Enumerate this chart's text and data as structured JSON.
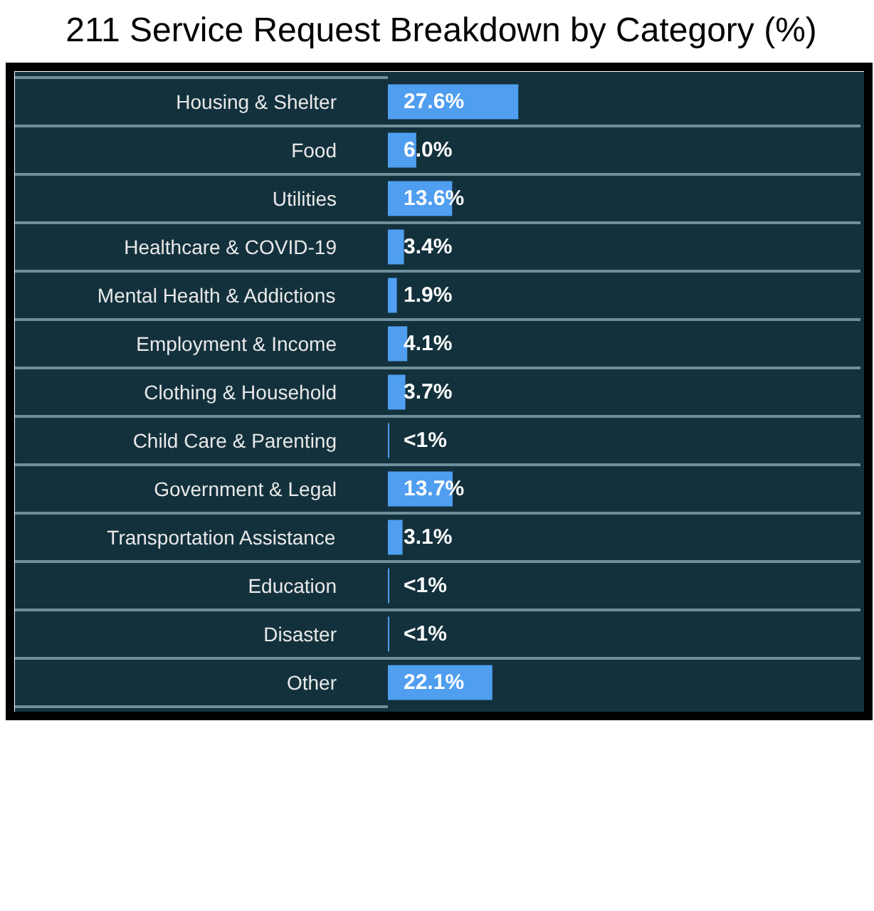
{
  "chart_data": {
    "type": "bar",
    "orientation": "horizontal",
    "title": "211 Service Request Breakdown by Category (%)",
    "categories": [
      "Housing & Shelter",
      "Food",
      "Utilities",
      "Healthcare & COVID-19",
      "Mental Health & Addictions",
      "Employment & Income",
      "Clothing & Household",
      "Child Care & Parenting",
      "Government & Legal",
      "Transportation Assistance",
      "Education",
      "Disaster",
      "Other"
    ],
    "values": [
      27.6,
      6.0,
      13.6,
      3.4,
      1.9,
      4.1,
      3.7,
      0.3,
      13.7,
      3.1,
      0.3,
      0.3,
      22.1
    ],
    "value_labels": [
      "27.6%",
      "6.0%",
      "13.6%",
      "3.4%",
      "1.9%",
      "4.1%",
      "3.7%",
      "<1%",
      "13.7%",
      "3.1%",
      "<1%",
      "<1%",
      "22.1%"
    ],
    "color": "#4f9ef0",
    "xlim": [
      0,
      100
    ],
    "tick_labels": "y"
  }
}
